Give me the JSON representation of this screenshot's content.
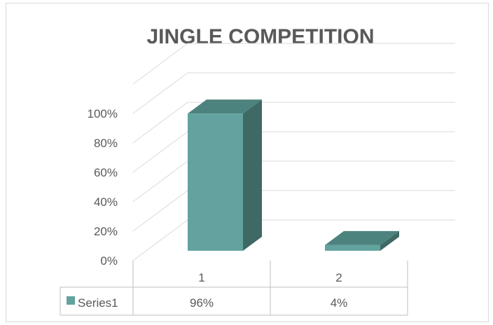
{
  "chart_data": {
    "type": "bar",
    "style": "3d-column-with-data-table",
    "title": "JINGLE COMPETITION",
    "categories": [
      "1",
      "2"
    ],
    "series": [
      {
        "name": "Series1",
        "values": [
          0.96,
          0.04
        ],
        "labels": [
          "96%",
          "4%"
        ],
        "color": "#62a39f"
      }
    ],
    "y_ticks": [
      "0%",
      "20%",
      "40%",
      "60%",
      "80%",
      "100%"
    ],
    "ylim": [
      0,
      1
    ],
    "grid": true,
    "legend": "data-table-left"
  },
  "colors": {
    "bar_front": "#62a39f",
    "bar_side": "#3e6964",
    "bar_top": "#4d837e",
    "grid": "#d9d9d9",
    "text": "#595959"
  }
}
